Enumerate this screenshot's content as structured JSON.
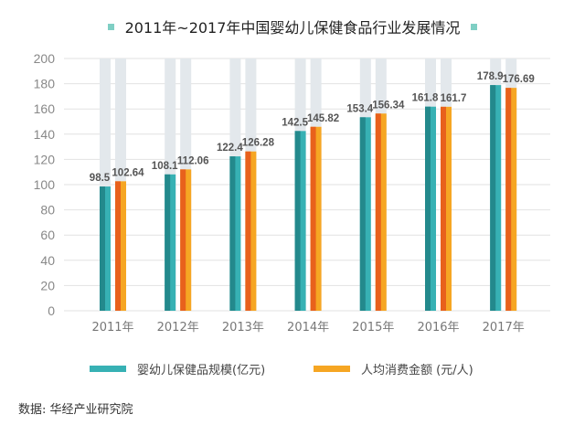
{
  "chart_data": {
    "type": "bar",
    "title": "2011年~2017年中国婴幼儿保健食品行业发展情况",
    "categories": [
      "2011年",
      "2012年",
      "2013年",
      "2014年",
      "2015年",
      "2016年",
      "2017年"
    ],
    "series": [
      {
        "name": "婴幼儿保健品规模(亿元)",
        "values": [
          98.5,
          108.1,
          122.4,
          142.5,
          153.4,
          161.8,
          178.9
        ],
        "labels": [
          "98.5",
          "108.1",
          "122.4",
          "142.5",
          "153.4",
          "161.8",
          "178.9"
        ],
        "color": "#37b1b4",
        "color_dark": "#23898c"
      },
      {
        "name": "人均消费金额 (元/人)",
        "values": [
          102.64,
          112.06,
          126.28,
          145.82,
          156.34,
          161.7,
          176.69
        ],
        "labels": [
          "102.64",
          "112.06",
          "126.28",
          "145.82",
          "156.34",
          "161.7",
          "176.69"
        ],
        "color": "#f6a623",
        "color_dark": "#e8611c"
      }
    ],
    "yticks": [
      0,
      20,
      40,
      60,
      80,
      100,
      120,
      140,
      160,
      180,
      200
    ],
    "ylim": [
      0,
      200
    ],
    "xlabel": "",
    "ylabel": "",
    "grid": true,
    "legend_position": "bottom",
    "track_color": "#e3e8ec",
    "title_marker_color": "#7fcfc4"
  },
  "source": "数据: 华经产业研究院"
}
